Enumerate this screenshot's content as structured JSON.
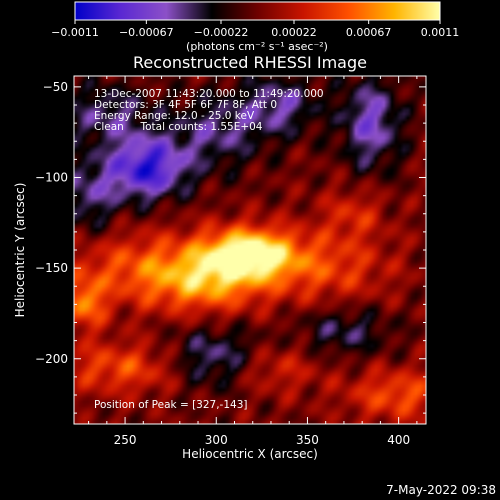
{
  "chart_data": {
    "type": "heatmap",
    "title": "Reconstructed RHESSI Image",
    "xlabel": "Heliocentric X (arcsec)",
    "ylabel": "Heliocentric Y (arcsec)",
    "xlim": [
      222,
      415
    ],
    "ylim": [
      -236,
      -44
    ],
    "xticks": [
      250,
      300,
      350,
      400
    ],
    "yticks": [
      -50,
      -100,
      -150,
      -200
    ],
    "colorbar": {
      "label": "(photons cm⁻² s⁻¹ asec⁻²)",
      "ticks": [
        "-0.0011",
        "-0.00067",
        "-0.00022",
        "0.00022",
        "0.00067",
        "0.0011"
      ],
      "range": [
        -0.0011,
        0.0011
      ],
      "colormap": [
        "#0000c8",
        "#5a28d2",
        "#8c50c8",
        "#000000",
        "#6e0000",
        "#c81400",
        "#ff5000",
        "#ffb400",
        "#ffffaa"
      ]
    },
    "annotations": [
      "13-Dec-2007 11:43:20.000 to 11:49:20.000",
      "Detectors: 3F 4F 5F 6F 7F 8F, Att 0",
      "Energy Range: 12.0 - 25.0 keV",
      "Clean     Total counts: 1.55E+04",
      "Position of Peak = [327,-143]"
    ],
    "peak": {
      "x": 327,
      "y": -143
    },
    "sources": [
      {
        "x": 318,
        "y": -142,
        "sx": 18,
        "sy": 10,
        "amp": 1.0
      },
      {
        "x": 295,
        "y": -158,
        "sx": 22,
        "sy": 12,
        "amp": 0.55
      },
      {
        "x": 260,
        "y": -150,
        "sx": 30,
        "sy": 14,
        "amp": 0.45
      },
      {
        "x": 360,
        "y": -150,
        "sx": 25,
        "sy": 14,
        "amp": 0.4
      },
      {
        "x": 228,
        "y": -170,
        "sx": 8,
        "sy": 10,
        "amp": 0.55
      },
      {
        "x": 250,
        "y": -205,
        "sx": 25,
        "sy": 10,
        "amp": 0.45
      },
      {
        "x": 400,
        "y": -220,
        "sx": 20,
        "sy": 10,
        "amp": 0.45
      },
      {
        "x": 330,
        "y": -205,
        "sx": 18,
        "sy": 10,
        "amp": 0.35
      },
      {
        "x": 375,
        "y": -120,
        "sx": 12,
        "sy": 10,
        "amp": 0.3
      },
      {
        "x": 262,
        "y": -95,
        "sx": 15,
        "sy": 12,
        "amp": -0.85
      },
      {
        "x": 385,
        "y": -70,
        "sx": 12,
        "sy": 18,
        "amp": -0.55
      },
      {
        "x": 335,
        "y": -60,
        "sx": 15,
        "sy": 12,
        "amp": -0.45
      },
      {
        "x": 300,
        "y": -75,
        "sx": 18,
        "sy": 15,
        "amp": -0.4
      },
      {
        "x": 240,
        "y": -65,
        "sx": 18,
        "sy": 12,
        "amp": -0.4
      },
      {
        "x": 300,
        "y": -200,
        "sx": 20,
        "sy": 12,
        "amp": -0.5
      },
      {
        "x": 370,
        "y": -185,
        "sx": 18,
        "sy": 10,
        "amp": -0.35
      },
      {
        "x": 230,
        "y": -110,
        "sx": 12,
        "sy": 15,
        "amp": -0.4
      }
    ]
  },
  "footer": {
    "timestamp": "7-May-2022 09:38"
  }
}
